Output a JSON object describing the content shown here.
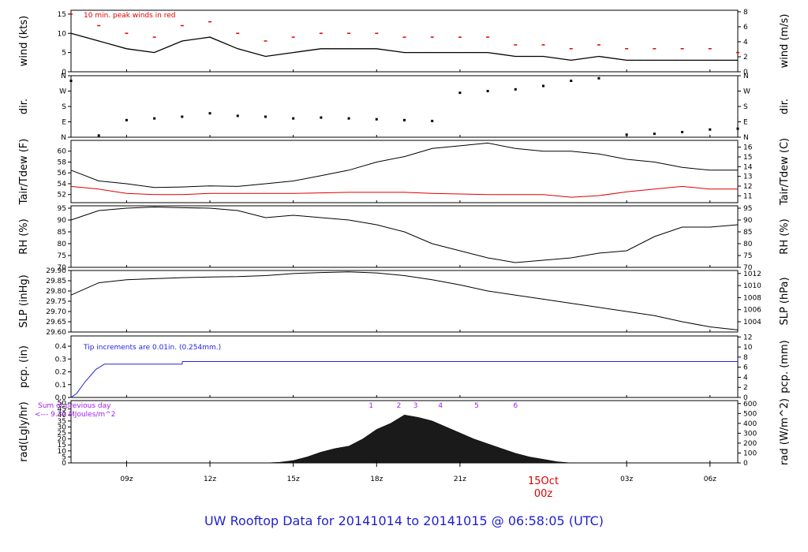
{
  "title": "UW Rooftop Data for 20141014  to  20141015 @ 06:58:05  (UTC)",
  "colors": {
    "black": "#000000",
    "red": "#e00000",
    "blue": "#2323e0",
    "purple": "#a020f0",
    "title": "#1f1fd0"
  },
  "chart_data": [
    {
      "type": "line",
      "id": "wind",
      "ylabel": "wind (kts)",
      "ylabel_right": "wind (m/s)",
      "ylim": [
        0,
        16
      ],
      "yticks": [
        "0",
        "5",
        "10",
        "15"
      ],
      "ytick_values": [
        0,
        5,
        10,
        15
      ],
      "ylim_right": [
        0,
        8.2
      ],
      "yticks_right": [
        "0",
        "2",
        "4",
        "6",
        "8"
      ],
      "ytick_values_right": [
        0,
        2,
        4,
        6,
        8
      ],
      "annotation": "10 min. peak winds in red",
      "x": [
        0,
        1,
        2,
        3,
        4,
        5,
        6,
        7,
        8,
        9,
        10,
        11,
        12,
        13,
        14,
        15,
        16,
        17,
        18,
        19,
        20,
        21,
        22,
        23,
        24
      ],
      "series": [
        {
          "role": "wind",
          "values": [
            10,
            8,
            6,
            5,
            8,
            9,
            6,
            4,
            5,
            6,
            6,
            6,
            5,
            5,
            5,
            5,
            4,
            4,
            3,
            4,
            3,
            3,
            3,
            3,
            3
          ]
        },
        {
          "role": "peak",
          "values": [
            15,
            12,
            10,
            9,
            12,
            13,
            10,
            8,
            9,
            10,
            10,
            10,
            9,
            9,
            9,
            9,
            7,
            7,
            6,
            7,
            6,
            6,
            6,
            6,
            5
          ]
        }
      ]
    },
    {
      "type": "scatter",
      "id": "dir",
      "ylabel": "dir.",
      "ylabel_right": "dir.",
      "ylim": [
        0,
        360
      ],
      "yticks": [
        "N",
        "E",
        "S",
        "W",
        "N"
      ],
      "ytick_values": [
        0,
        90,
        180,
        270,
        360
      ],
      "x": [
        0,
        1,
        2,
        3,
        4,
        5,
        6,
        7,
        8,
        9,
        10,
        11,
        12,
        13,
        14,
        15,
        16,
        17,
        18,
        19,
        20,
        21,
        22,
        23,
        24
      ],
      "values": [
        330,
        10,
        100,
        110,
        120,
        140,
        125,
        120,
        110,
        115,
        110,
        105,
        100,
        95,
        260,
        270,
        280,
        300,
        330,
        345,
        15,
        20,
        30,
        45,
        50
      ]
    },
    {
      "type": "line",
      "id": "temp",
      "ylabel": "Tair/Tdew (F)",
      "ylabel_right": "Tair/Tdew (C)",
      "ylim": [
        50.5,
        62
      ],
      "yticks": [
        "52",
        "54",
        "56",
        "58",
        "60"
      ],
      "ytick_values": [
        52,
        54,
        56,
        58,
        60
      ],
      "ylim_right": [
        10.3,
        16.7
      ],
      "yticks_right": [
        "11",
        "12",
        "13",
        "14",
        "15",
        "16"
      ],
      "ytick_values_right": [
        11,
        12,
        13,
        14,
        15,
        16
      ],
      "x": [
        0,
        1,
        2,
        3,
        4,
        5,
        6,
        7,
        8,
        9,
        10,
        11,
        12,
        13,
        14,
        15,
        16,
        17,
        18,
        19,
        20,
        21,
        22,
        23,
        24
      ],
      "series": [
        {
          "role": "air",
          "values": [
            56.5,
            54.5,
            54,
            53.3,
            53.4,
            53.6,
            53.5,
            54,
            54.5,
            55.5,
            56.5,
            58,
            59,
            60.5,
            61,
            61.5,
            60.5,
            60,
            60,
            59.5,
            58.5,
            58,
            57,
            56.5,
            56.5
          ]
        },
        {
          "role": "dew",
          "values": [
            53.5,
            53,
            52.2,
            52,
            52,
            52.2,
            52.2,
            52.2,
            52.2,
            52.3,
            52.4,
            52.4,
            52.4,
            52.2,
            52.1,
            52,
            52,
            52,
            51.5,
            51.8,
            52.5,
            53,
            53.5,
            53,
            53
          ]
        }
      ]
    },
    {
      "type": "line",
      "id": "rh",
      "ylabel": "RH (%)",
      "ylabel_right": "RH (%)",
      "ylim": [
        70,
        96
      ],
      "yticks": [
        "70",
        "75",
        "80",
        "85",
        "90",
        "95"
      ],
      "ytick_values": [
        70,
        75,
        80,
        85,
        90,
        95
      ],
      "x": [
        0,
        1,
        2,
        3,
        4,
        5,
        6,
        7,
        8,
        9,
        10,
        11,
        12,
        13,
        14,
        15,
        16,
        17,
        18,
        19,
        20,
        21,
        22,
        23,
        24
      ],
      "values": [
        90,
        94,
        95,
        95.5,
        95.2,
        95,
        94,
        91,
        92,
        91,
        90,
        88,
        85,
        80,
        77,
        74,
        72,
        73,
        74,
        76,
        77,
        83,
        87,
        87,
        88
      ]
    },
    {
      "type": "line",
      "id": "slp",
      "ylabel": "SLP (inHg)",
      "ylabel_right": "SLP (hPa)",
      "ylim": [
        29.6,
        29.9
      ],
      "yticks": [
        "29.60",
        "29.65",
        "29.70",
        "29.75",
        "29.80",
        "29.85",
        "29.90"
      ],
      "ytick_values": [
        29.6,
        29.65,
        29.7,
        29.75,
        29.8,
        29.85,
        29.9
      ],
      "ylim_right": [
        1002.3,
        1012.5
      ],
      "yticks_right": [
        "1004",
        "1006",
        "1008",
        "1010",
        "1012"
      ],
      "ytick_values_right": [
        1004,
        1006,
        1008,
        1010,
        1012
      ],
      "x": [
        0,
        1,
        2,
        3,
        4,
        5,
        6,
        7,
        8,
        9,
        10,
        11,
        12,
        13,
        14,
        15,
        16,
        17,
        18,
        19,
        20,
        21,
        22,
        23,
        24
      ],
      "values": [
        29.78,
        29.84,
        29.855,
        29.86,
        29.865,
        29.868,
        29.87,
        29.875,
        29.885,
        29.89,
        29.893,
        29.888,
        29.875,
        29.855,
        29.83,
        29.8,
        29.78,
        29.76,
        29.74,
        29.72,
        29.7,
        29.68,
        29.65,
        29.625,
        29.61
      ]
    },
    {
      "type": "line",
      "id": "pcp",
      "ylabel": "pcp. (in)",
      "ylabel_right": "pcp. (mm)",
      "ylim": [
        0,
        0.48
      ],
      "yticks": [
        "0.0",
        "0.1",
        "0.2",
        "0.3",
        "0.4"
      ],
      "ytick_values": [
        0,
        0.1,
        0.2,
        0.3,
        0.4
      ],
      "ylim_right": [
        0,
        12.2
      ],
      "yticks_right": [
        "0",
        "2",
        "4",
        "6",
        "8",
        "10",
        "12"
      ],
      "ytick_values_right": [
        0,
        2,
        4,
        6,
        8,
        10,
        12
      ],
      "annotation": "Tip increments are 0.01in. (0.254mm.)",
      "x": [
        0,
        0.2,
        0.5,
        0.9,
        1.2,
        4,
        4.01,
        24
      ],
      "values": [
        0,
        0.03,
        0.12,
        0.22,
        0.26,
        0.26,
        0.28,
        0.28
      ]
    },
    {
      "type": "area",
      "id": "rad",
      "ylabel": "rad(Lgly/hr)",
      "ylabel_right": "rad (W/m^2)",
      "ylim": [
        0,
        52
      ],
      "yticks": [
        "0",
        "5",
        "10",
        "15",
        "20",
        "25",
        "30",
        "35",
        "40",
        "45",
        "50"
      ],
      "ytick_values": [
        0,
        5,
        10,
        15,
        20,
        25,
        30,
        35,
        40,
        45,
        50
      ],
      "ylim_right": [
        0,
        630
      ],
      "yticks_right": [
        "0",
        "100",
        "200",
        "300",
        "400",
        "500",
        "600"
      ],
      "ytick_values_right": [
        0,
        100,
        200,
        300,
        400,
        500,
        600
      ],
      "annotation_lines": [
        "Sum of previous day",
        "<--- 9.32 MJoules/m^2"
      ],
      "hour_markers": [
        "1",
        "2",
        "3",
        "4",
        "5",
        "6"
      ],
      "hour_marker_x": [
        10.8,
        11.8,
        12.4,
        13.3,
        14.6,
        16.0
      ],
      "x": [
        7,
        7.5,
        8,
        8.5,
        9,
        9.5,
        10,
        10.5,
        11,
        11.5,
        12,
        12.5,
        13,
        13.5,
        14,
        14.5,
        15,
        15.5,
        16,
        16.5,
        17,
        17.5,
        18
      ],
      "values": [
        0,
        0.5,
        2,
        5,
        9,
        12,
        14,
        20,
        28,
        33,
        40,
        38,
        35,
        30,
        25,
        20,
        16,
        12,
        8,
        5,
        3,
        1,
        0
      ]
    }
  ],
  "x_axis": {
    "xlim": [
      0,
      24
    ],
    "tick_labels": [
      "09z",
      "12z",
      "15z",
      "18z",
      "21z",
      "03z",
      "06z"
    ],
    "tick_values": [
      2,
      5,
      8,
      11,
      14,
      20,
      23
    ],
    "date_label": [
      "15Oct",
      "00z"
    ],
    "date_value": 17
  }
}
